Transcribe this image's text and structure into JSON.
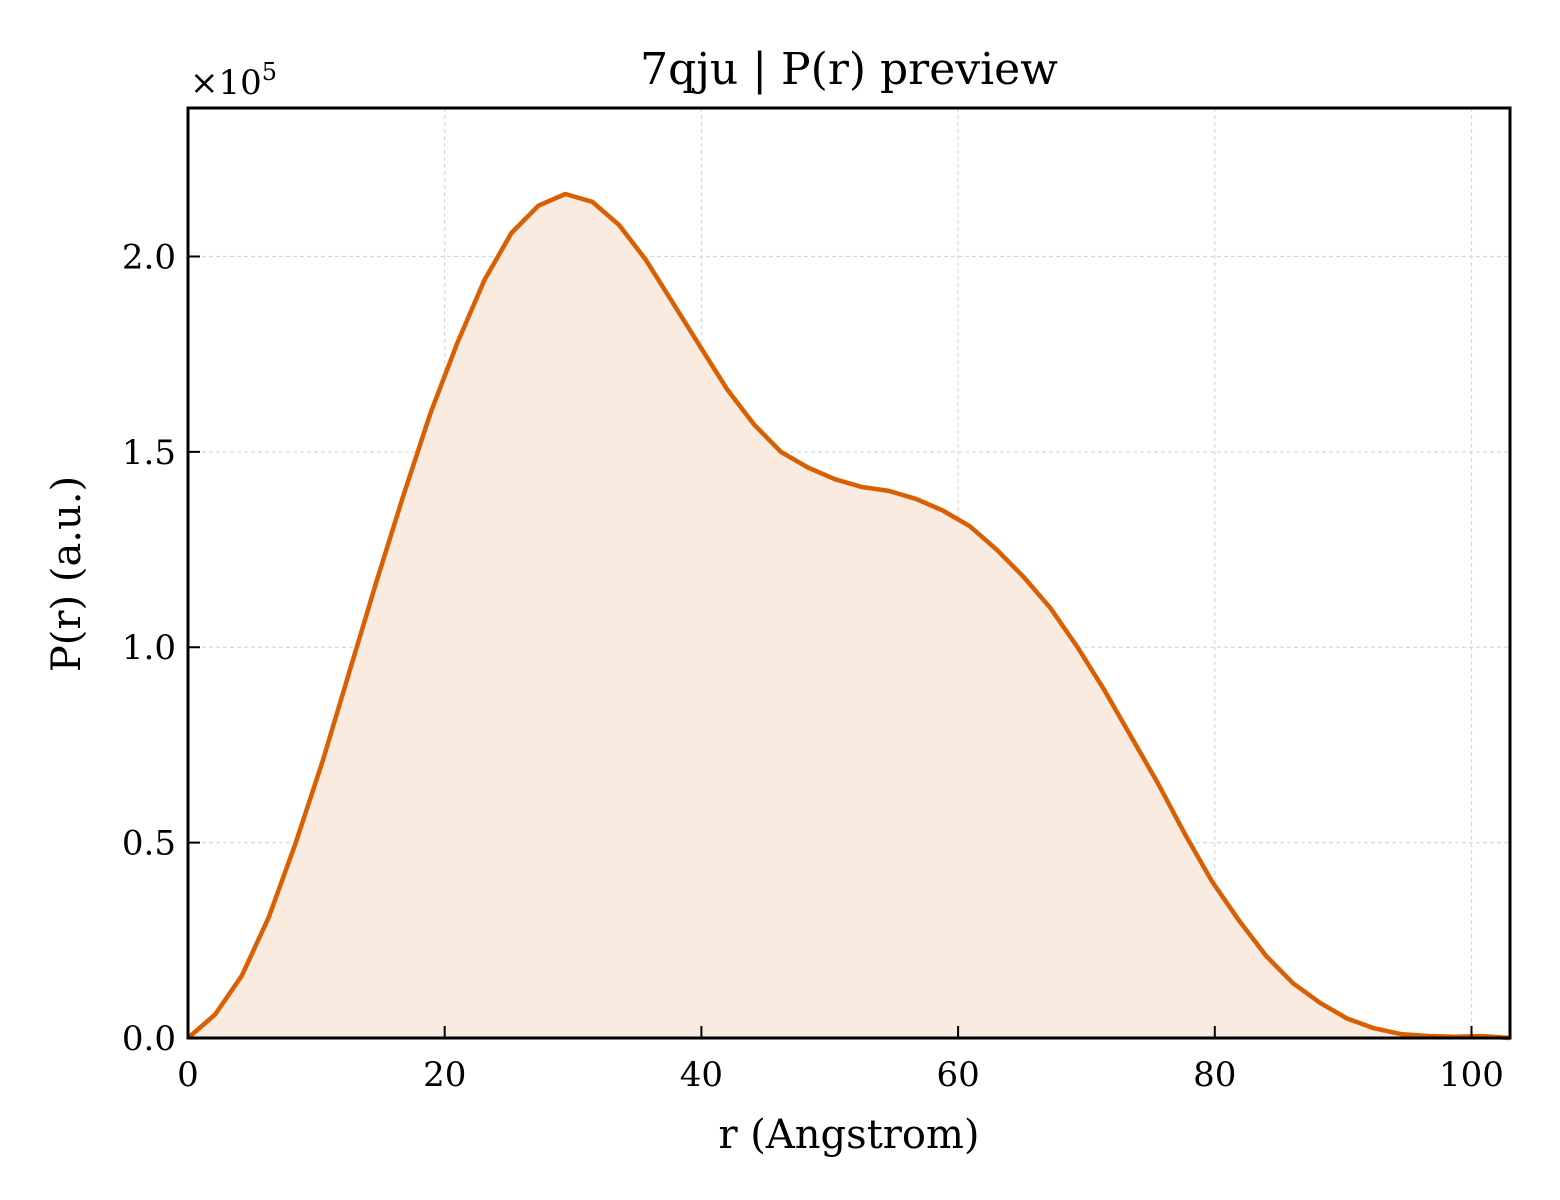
{
  "chart_data": {
    "type": "area",
    "title": "7qju | P(r) preview",
    "xlabel": "r (Angstrom)",
    "ylabel": "P(r) (a.u.)",
    "y_multiplier_base": "×10",
    "y_multiplier_exp": "5",
    "xlim": [
      0,
      103
    ],
    "ylim": [
      0,
      2.38
    ],
    "x_ticks": [
      0,
      20,
      40,
      60,
      80,
      100
    ],
    "x_tick_labels": [
      "0",
      "20",
      "40",
      "60",
      "80",
      "100"
    ],
    "y_ticks": [
      0.0,
      0.5,
      1.0,
      1.5,
      2.0
    ],
    "y_tick_labels": [
      "0.0",
      "0.5",
      "1.0",
      "1.5",
      "2.0"
    ],
    "grid": true,
    "line_color": "#d95f02",
    "fill_color": "#f9ebe0",
    "series": [
      {
        "x": [
          0,
          2.1,
          4.2,
          6.3,
          8.4,
          10.5,
          12.6,
          14.7,
          16.8,
          18.9,
          21.0,
          23.1,
          25.2,
          27.3,
          29.4,
          31.5,
          33.6,
          35.7,
          37.8,
          39.9,
          42.0,
          44.1,
          46.2,
          48.3,
          50.4,
          52.5,
          54.6,
          56.7,
          58.8,
          60.9,
          63.0,
          65.1,
          67.2,
          69.3,
          71.4,
          73.5,
          75.6,
          77.7,
          79.8,
          81.9,
          84.0,
          86.1,
          88.2,
          90.3,
          92.4,
          94.5,
          96.6,
          98.7,
          100.8,
          103.0
        ],
        "y": [
          0.0,
          0.06,
          0.16,
          0.31,
          0.5,
          0.71,
          0.94,
          1.17,
          1.39,
          1.6,
          1.78,
          1.94,
          2.06,
          2.13,
          2.16,
          2.14,
          2.08,
          1.99,
          1.88,
          1.77,
          1.66,
          1.57,
          1.5,
          1.46,
          1.43,
          1.41,
          1.4,
          1.38,
          1.35,
          1.31,
          1.25,
          1.18,
          1.1,
          1.0,
          0.89,
          0.77,
          0.65,
          0.52,
          0.4,
          0.3,
          0.21,
          0.14,
          0.09,
          0.05,
          0.025,
          0.01,
          0.005,
          0.003,
          0.005,
          0.0
        ]
      }
    ]
  }
}
